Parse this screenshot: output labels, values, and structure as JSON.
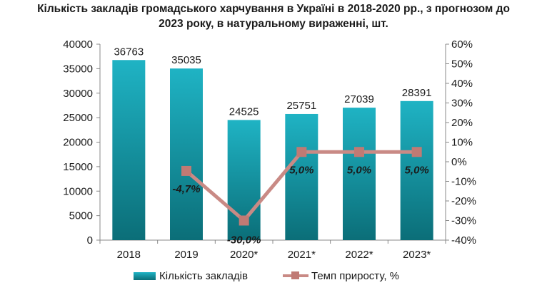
{
  "chart_data": {
    "type": "bar",
    "title_lines": [
      "Кількість закладів громадського харчування в Україні в 2018-2020 рр., з прогнозом до",
      "2023 року, в натуральному вираженні, шт."
    ],
    "categories": [
      "2018",
      "2019",
      "2020*",
      "2021*",
      "2022*",
      "2023*"
    ],
    "series": [
      {
        "name": "Кількість закладів",
        "type": "bar",
        "axis": "left",
        "values": [
          36763,
          35035,
          24525,
          25751,
          27039,
          28391
        ],
        "labels": [
          "36763",
          "35035",
          "24525",
          "25751",
          "27039",
          "28391"
        ]
      },
      {
        "name": "Темп приросту, %",
        "type": "line",
        "axis": "right",
        "values": [
          null,
          -4.7,
          -30.0,
          5.0,
          5.0,
          5.0
        ],
        "labels": [
          "",
          "-4,7%",
          "-30,0%",
          "5,0%",
          "5,0%",
          "5,0%"
        ]
      }
    ],
    "y_left": {
      "ylim": [
        0,
        40000
      ],
      "ticks": [
        0,
        5000,
        10000,
        15000,
        20000,
        25000,
        30000,
        35000,
        40000
      ],
      "tick_labels": [
        "0",
        "5000",
        "10000",
        "15000",
        "20000",
        "25000",
        "30000",
        "35000",
        "40000"
      ]
    },
    "y_right": {
      "ylim": [
        -40,
        60
      ],
      "ticks": [
        -40,
        -30,
        -20,
        -10,
        0,
        10,
        20,
        30,
        40,
        50,
        60
      ],
      "tick_labels": [
        "-40%",
        "-30%",
        "-20%",
        "-10%",
        "0%",
        "10%",
        "20%",
        "30%",
        "40%",
        "50%",
        "60%"
      ]
    },
    "grid": false,
    "legend_position": "bottom",
    "colors": {
      "bar_light": "#1fb3c4",
      "bar_dark": "#0b6e78",
      "line": "#c98a85",
      "marker": "#c07a74",
      "text": "#1a1a1a"
    }
  }
}
